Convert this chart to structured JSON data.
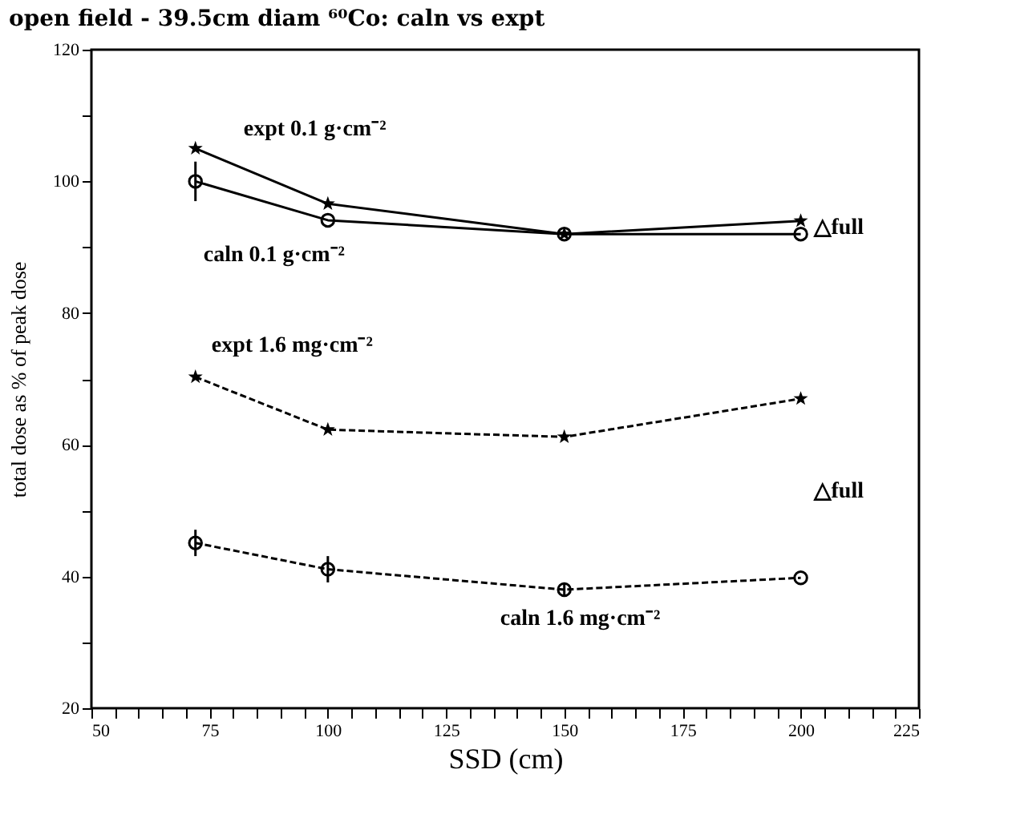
{
  "chart_data": {
    "type": "line",
    "title": "open field - 39.5cm diam  ⁶⁰Co: caln vs expt",
    "xlabel": "SSD (cm)",
    "ylabel": "total dose as % of peak dose",
    "x": [
      72,
      100,
      150,
      200
    ],
    "series": [
      {
        "name": "expt 0.1 g·cm⁻²",
        "color": "#000000",
        "values": [
          105,
          96.6,
          92,
          94
        ],
        "marker": "star",
        "line_style": "solid"
      },
      {
        "name": "caln 0.1 g·cm⁻²",
        "color": "#000000",
        "values": [
          100,
          94.1,
          92,
          92
        ],
        "marker": "circle",
        "line_style": "solid",
        "errors": [
          3,
          null,
          null,
          null
        ]
      },
      {
        "name": "expt 1.6 mg·cm⁻²",
        "color": "#000000",
        "values": [
          70.3,
          62.3,
          61.2,
          67
        ],
        "marker": "star",
        "line_style": "dashed"
      },
      {
        "name": "caln 1.6 mg·cm⁻²",
        "color": "#000000",
        "values": [
          45.1,
          41.1,
          38,
          39.8
        ],
        "marker": "circle",
        "line_style": "dashed",
        "errors": [
          2,
          2,
          1,
          null
        ]
      }
    ],
    "annotations": [
      "△full",
      "△full"
    ],
    "xlim": [
      50,
      225
    ],
    "ylim": [
      20,
      120
    ],
    "xticks": [
      50,
      {
        "value": 55,
        "label": null
      },
      {
        "value": 60,
        "label": null
      },
      {
        "value": 65,
        "label": null
      },
      {
        "value": 70,
        "label": null
      },
      75,
      {
        "value": 80,
        "label": null
      },
      {
        "value": 85,
        "label": null
      },
      {
        "value": 90,
        "label": null
      },
      {
        "value": 95,
        "label": null
      },
      100,
      {
        "value": 105,
        "label": null
      },
      {
        "value": 110,
        "label": null
      },
      {
        "value": 115,
        "label": null
      },
      {
        "value": 120,
        "label": null
      },
      125,
      {
        "value": 130,
        "label": null
      },
      {
        "value": 135,
        "label": null
      },
      {
        "value": 140,
        "label": null
      },
      {
        "value": 145,
        "label": null
      },
      150,
      {
        "value": 155,
        "label": null
      },
      {
        "value": 160,
        "label": null
      },
      {
        "value": 165,
        "label": null
      },
      {
        "value": 170,
        "label": null
      },
      175,
      {
        "value": 180,
        "label": null
      },
      {
        "value": 185,
        "label": null
      },
      {
        "value": 190,
        "label": null
      },
      {
        "value": 195,
        "label": null
      },
      200,
      {
        "value": 205,
        "label": null
      },
      {
        "value": 210,
        "label": null
      },
      {
        "value": 215,
        "label": null
      },
      {
        "value": 220,
        "label": null
      },
      225
    ],
    "yticks": [
      20,
      {
        "value": 30,
        "label": null
      },
      40,
      {
        "value": 50,
        "label": null
      },
      60,
      {
        "value": 70,
        "label": null
      },
      80,
      {
        "value": 90,
        "label": null
      },
      100,
      {
        "value": 110,
        "label": null
      },
      120
    ],
    "grid": false
  }
}
